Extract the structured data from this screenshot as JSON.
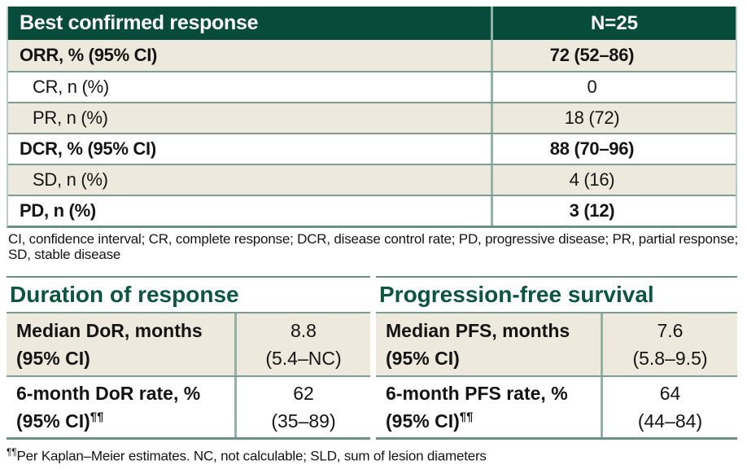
{
  "colors": {
    "header_bg": "#074B3B",
    "stripe_bg": "#EDE9DD",
    "divider": "#7E9D92",
    "title_green": "#0B5541"
  },
  "best_response_table": {
    "header_label": "Best confirmed response",
    "header_value": "N=25",
    "rows": [
      {
        "label": "ORR, % (95% CI)",
        "value": "72 (52–86)"
      },
      {
        "label": "CR, n (%)",
        "value": "0"
      },
      {
        "label": "PR, n (%)",
        "value": "18 (72)"
      },
      {
        "label": "DCR, % (95% CI)",
        "value": "88 (70–96)"
      },
      {
        "label": "SD, n (%)",
        "value": "4 (16)"
      },
      {
        "label": "PD, n (%)",
        "value": "3 (12)"
      }
    ],
    "footnote_lines": [
      "CI, confidence interval; CR, complete response; DCR, disease control rate; PD, progressive disease; PR, partial response;",
      "SD, stable disease"
    ]
  },
  "duration_table": {
    "title": "Duration of response",
    "rows": [
      {
        "label_line1": "Median DoR, months",
        "label_line2": "(95% CI)",
        "label_sup": "",
        "value_line1": "8.8",
        "value_line2": "(5.4–NC)"
      },
      {
        "label_line1": "6-month DoR rate, %",
        "label_line2": "(95% CI)",
        "label_sup": "¶¶",
        "value_line1": "62",
        "value_line2": "(35–89)"
      }
    ]
  },
  "pfs_table": {
    "title": "Progression-free survival",
    "rows": [
      {
        "label_line1": "Median PFS, months",
        "label_line2": "(95% CI)",
        "label_sup": "",
        "value_line1": "7.6",
        "value_line2": "(5.8–9.5)"
      },
      {
        "label_line1": "6-month PFS rate, %",
        "label_line2": "(95% CI)",
        "label_sup": "¶¶",
        "value_line1": "64",
        "value_line2": "(44–84)"
      }
    ]
  },
  "km_footnote": {
    "marker": "¶¶",
    "text": "Per Kaplan–Meier estimates. NC, not calculable; SLD, sum of lesion diameters"
  }
}
